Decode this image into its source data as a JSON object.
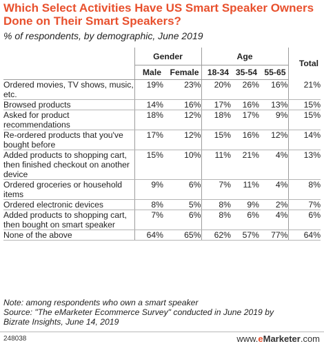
{
  "chart_data": {
    "type": "table",
    "title": "Which Select Activities Have US Smart Speaker Owners Done on Their Smart Speakers?",
    "subtitle": "% of respondents, by demographic, June 2019",
    "groups": [
      {
        "label": "Gender",
        "columns": [
          "Male",
          "Female"
        ]
      },
      {
        "label": "Age",
        "columns": [
          "18-34",
          "35-54",
          "55-65"
        ]
      },
      {
        "label": "Total",
        "columns": []
      }
    ],
    "columns": [
      "Male",
      "Female",
      "18-34",
      "35-54",
      "55-65",
      "Total"
    ],
    "rows": [
      {
        "label": "Ordered movies, TV shows, music, etc.",
        "values": [
          "19%",
          "23%",
          "20%",
          "26%",
          "16%",
          "21%"
        ]
      },
      {
        "label": "Browsed products",
        "values": [
          "14%",
          "16%",
          "17%",
          "16%",
          "13%",
          "15%"
        ]
      },
      {
        "label": "Asked for product recommendations",
        "values": [
          "18%",
          "12%",
          "18%",
          "17%",
          "9%",
          "15%"
        ]
      },
      {
        "label": "Re-ordered products that you've bought before",
        "values": [
          "17%",
          "12%",
          "15%",
          "16%",
          "12%",
          "14%"
        ]
      },
      {
        "label": "Added products to shopping cart, then finished checkout on another device",
        "values": [
          "15%",
          "10%",
          "11%",
          "21%",
          "4%",
          "13%"
        ]
      },
      {
        "label": "Ordered groceries or household items",
        "values": [
          "9%",
          "6%",
          "7%",
          "11%",
          "4%",
          "8%"
        ]
      },
      {
        "label": "Ordered electronic devices",
        "values": [
          "8%",
          "5%",
          "8%",
          "9%",
          "2%",
          "7%"
        ]
      },
      {
        "label": "Added products to shopping cart, then bought on smart speaker",
        "values": [
          "7%",
          "6%",
          "8%",
          "6%",
          "4%",
          "6%"
        ]
      },
      {
        "label": "None of the above",
        "values": [
          "64%",
          "65%",
          "62%",
          "57%",
          "77%",
          "64%"
        ]
      }
    ]
  },
  "note_lines": [
    "Note: among respondents who own a smart speaker",
    "Source: \"The eMarketer Ecommerce Survey\" conducted in June 2019 by",
    "Bizrate Insights, June 14, 2019"
  ],
  "footer": {
    "chart_id": "248038",
    "brand_prefix": "www.",
    "brand_e": "e",
    "brand_name": "Marketer",
    "brand_suffix": ".com"
  },
  "colors": {
    "title": "#e8502d",
    "rule": "#b4b4b4"
  }
}
